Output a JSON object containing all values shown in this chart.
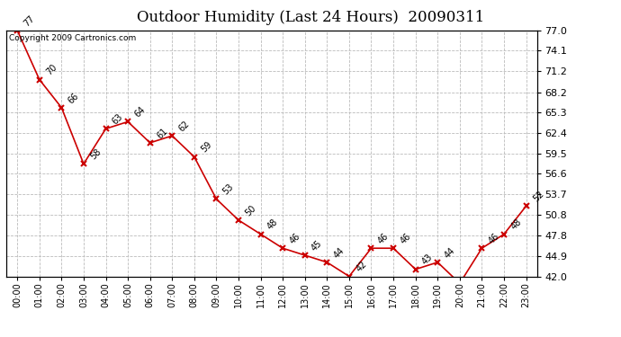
{
  "title": "Outdoor Humidity (Last 24 Hours)  20090311",
  "copyright": "Copyright 2009 Cartronics.com",
  "x_labels": [
    "00:00",
    "01:00",
    "02:00",
    "03:00",
    "04:00",
    "05:00",
    "06:00",
    "07:00",
    "08:00",
    "09:00",
    "10:00",
    "11:00",
    "12:00",
    "13:00",
    "14:00",
    "15:00",
    "16:00",
    "17:00",
    "18:00",
    "19:00",
    "20:00",
    "21:00",
    "22:00",
    "23:00"
  ],
  "y_values": [
    77,
    70,
    66,
    58,
    63,
    64,
    61,
    62,
    59,
    53,
    50,
    48,
    46,
    45,
    44,
    42,
    46,
    46,
    43,
    44,
    41,
    46,
    48,
    52
  ],
  "ylim_min": 42.0,
  "ylim_max": 77.0,
  "yticks": [
    42.0,
    44.9,
    47.8,
    50.8,
    53.7,
    56.6,
    59.5,
    62.4,
    65.3,
    68.2,
    71.2,
    74.1,
    77.0
  ],
  "line_color": "#cc0000",
  "marker": "x",
  "marker_color": "#cc0000",
  "bg_color": "#ffffff",
  "plot_bg_color": "#ffffff",
  "grid_color": "#bbbbbb",
  "title_fontsize": 12,
  "annotation_fontsize": 7,
  "copyright_fontsize": 6.5,
  "tick_fontsize": 8,
  "xtick_fontsize": 7
}
